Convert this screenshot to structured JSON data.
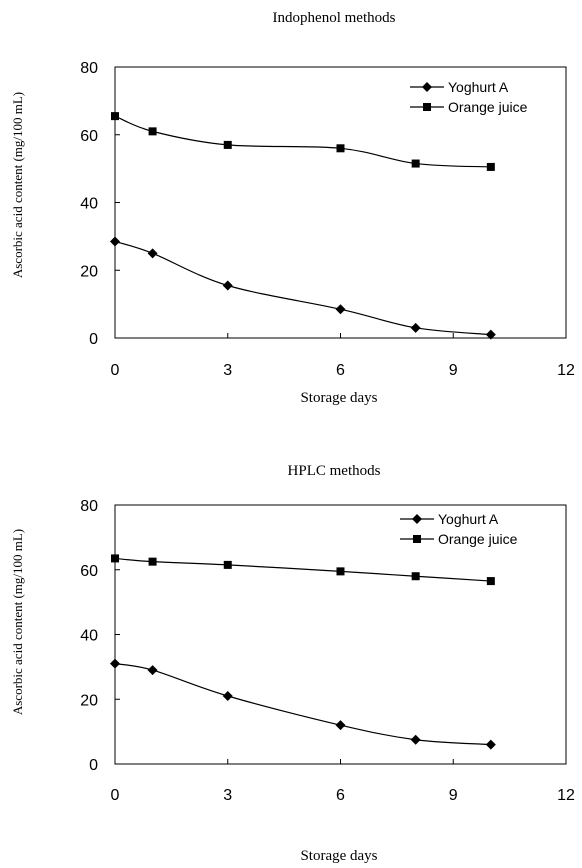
{
  "chart_data": [
    {
      "type": "line",
      "title": "Indophenol methods",
      "xlabel": "Storage days",
      "ylabel": "Ascorbic acid content (mg/100 mL)",
      "xlim": [
        0,
        12
      ],
      "ylim": [
        0,
        80
      ],
      "xticks": [
        0,
        3,
        6,
        9,
        12
      ],
      "yticks": [
        0,
        20,
        40,
        60,
        80
      ],
      "grid": false,
      "legend_position": "top-right",
      "series": [
        {
          "name": "Yoghurt A",
          "marker": "diamond",
          "x": [
            0,
            1,
            3,
            6,
            8,
            10
          ],
          "values": [
            28.5,
            25,
            15.5,
            8.5,
            3,
            1
          ]
        },
        {
          "name": "Orange juice",
          "marker": "square",
          "x": [
            0,
            1,
            3,
            6,
            8,
            10
          ],
          "values": [
            65.5,
            61,
            57,
            56,
            51.5,
            50.5
          ]
        }
      ]
    },
    {
      "type": "line",
      "title": "HPLC methods",
      "xlabel": "Storage days",
      "ylabel": "Ascorbic acid content (mg/100 mL)",
      "xlim": [
        0,
        12
      ],
      "ylim": [
        0,
        80
      ],
      "xticks": [
        0,
        3,
        6,
        9,
        12
      ],
      "yticks": [
        0,
        20,
        40,
        60,
        80
      ],
      "grid": false,
      "legend_position": "top-right",
      "series": [
        {
          "name": "Yoghurt A",
          "marker": "diamond",
          "x": [
            0,
            1,
            3,
            6,
            8,
            10
          ],
          "values": [
            31,
            29,
            21,
            12,
            7.5,
            6
          ]
        },
        {
          "name": "Orange juice",
          "marker": "square",
          "x": [
            0,
            1,
            3,
            6,
            8,
            10
          ],
          "values": [
            63.5,
            62.5,
            61.5,
            59.5,
            58,
            56.5
          ]
        }
      ]
    }
  ]
}
